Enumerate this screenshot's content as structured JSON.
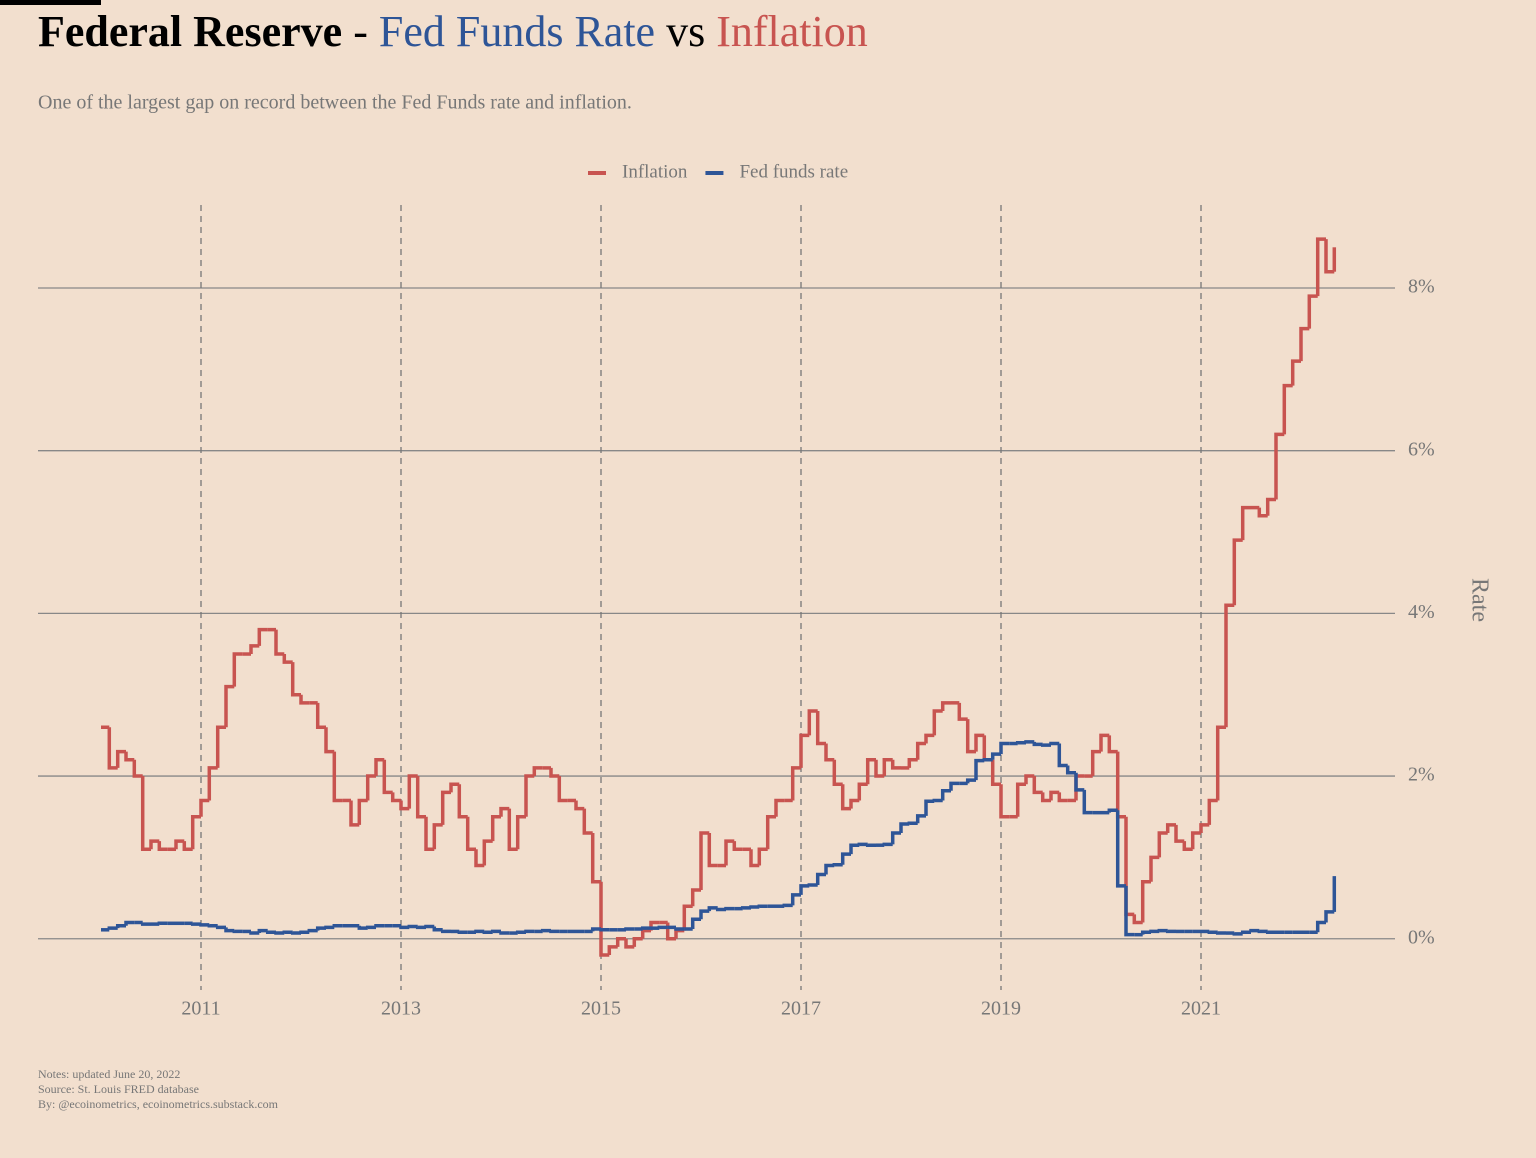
{
  "chart_data": {
    "type": "step",
    "title": {
      "part1": "Federal Reserve",
      "sep": "-",
      "part2": "Fed Funds Rate",
      "part3": "vs",
      "part4": "Inflation"
    },
    "subtitle": "One of the largest gap on record between the Fed Funds rate and inflation.",
    "y_label": "Rate",
    "notes": [
      "Notes: updated June 20, 2022",
      "Source: St. Louis FRED database",
      "By: @ecoinometrics, ecoinometrics.substack.com"
    ],
    "title_colors": {
      "part2": "#2e5597",
      "part4": "#c85450"
    },
    "x": [
      2010,
      2010.083,
      2010.167,
      2010.25,
      2010.333,
      2010.417,
      2010.5,
      2010.583,
      2010.667,
      2010.75,
      2010.833,
      2010.917,
      2011,
      2011.083,
      2011.167,
      2011.25,
      2011.333,
      2011.417,
      2011.5,
      2011.583,
      2011.667,
      2011.75,
      2011.833,
      2011.917,
      2012,
      2012.083,
      2012.167,
      2012.25,
      2012.333,
      2012.417,
      2012.5,
      2012.583,
      2012.667,
      2012.75,
      2012.833,
      2012.917,
      2013,
      2013.083,
      2013.167,
      2013.25,
      2013.333,
      2013.417,
      2013.5,
      2013.583,
      2013.667,
      2013.75,
      2013.833,
      2013.917,
      2014,
      2014.083,
      2014.167,
      2014.25,
      2014.333,
      2014.417,
      2014.5,
      2014.583,
      2014.667,
      2014.75,
      2014.833,
      2014.917,
      2015,
      2015.083,
      2015.167,
      2015.25,
      2015.333,
      2015.417,
      2015.5,
      2015.583,
      2015.667,
      2015.75,
      2015.833,
      2015.917,
      2016,
      2016.083,
      2016.167,
      2016.25,
      2016.333,
      2016.417,
      2016.5,
      2016.583,
      2016.667,
      2016.75,
      2016.833,
      2016.917,
      2017,
      2017.083,
      2017.167,
      2017.25,
      2017.333,
      2017.417,
      2017.5,
      2017.583,
      2017.667,
      2017.75,
      2017.833,
      2017.917,
      2018,
      2018.083,
      2018.167,
      2018.25,
      2018.333,
      2018.417,
      2018.5,
      2018.583,
      2018.667,
      2018.75,
      2018.833,
      2018.917,
      2019,
      2019.083,
      2019.167,
      2019.25,
      2019.333,
      2019.417,
      2019.5,
      2019.583,
      2019.667,
      2019.75,
      2019.833,
      2019.917,
      2020,
      2020.083,
      2020.167,
      2020.25,
      2020.333,
      2020.417,
      2020.5,
      2020.583,
      2020.667,
      2020.75,
      2020.833,
      2020.917,
      2021,
      2021.083,
      2021.167,
      2021.25,
      2021.333,
      2021.417,
      2021.5,
      2021.583,
      2021.667,
      2021.75,
      2021.833,
      2021.917,
      2022,
      2022.083,
      2022.167,
      2022.25,
      2022.333
    ],
    "series": [
      {
        "name": "Inflation",
        "color": "#c85450",
        "values": [
          2.6,
          2.1,
          2.3,
          2.2,
          2.0,
          1.1,
          1.2,
          1.1,
          1.1,
          1.2,
          1.1,
          1.5,
          1.7,
          2.1,
          2.6,
          3.1,
          3.5,
          3.5,
          3.6,
          3.8,
          3.8,
          3.5,
          3.4,
          3.0,
          2.9,
          2.9,
          2.6,
          2.3,
          1.7,
          1.7,
          1.4,
          1.7,
          2.0,
          2.2,
          1.8,
          1.7,
          1.6,
          2.0,
          1.5,
          1.1,
          1.4,
          1.8,
          1.9,
          1.5,
          1.1,
          0.9,
          1.2,
          1.5,
          1.6,
          1.1,
          1.5,
          2.0,
          2.1,
          2.1,
          2.0,
          1.7,
          1.7,
          1.6,
          1.3,
          0.7,
          -0.2,
          -0.1,
          0.0,
          -0.1,
          0.0,
          0.1,
          0.2,
          0.2,
          0.0,
          0.1,
          0.4,
          0.6,
          1.3,
          0.9,
          0.9,
          1.2,
          1.1,
          1.1,
          0.9,
          1.1,
          1.5,
          1.7,
          1.7,
          2.1,
          2.5,
          2.8,
          2.4,
          2.2,
          1.9,
          1.6,
          1.7,
          1.9,
          2.2,
          2.0,
          2.2,
          2.1,
          2.1,
          2.2,
          2.4,
          2.5,
          2.8,
          2.9,
          2.9,
          2.7,
          2.3,
          2.5,
          2.2,
          1.9,
          1.5,
          1.5,
          1.9,
          2.0,
          1.8,
          1.7,
          1.8,
          1.7,
          1.7,
          2.0,
          2.0,
          2.3,
          2.5,
          2.3,
          1.5,
          0.3,
          0.2,
          0.7,
          1.0,
          1.3,
          1.4,
          1.2,
          1.1,
          1.3,
          1.4,
          1.7,
          2.6,
          4.1,
          4.9,
          5.3,
          5.3,
          5.2,
          5.4,
          6.2,
          6.8,
          7.1,
          7.5,
          7.9,
          8.6,
          8.2,
          8.5
        ]
      },
      {
        "name": "Fed funds rate",
        "color": "#2e5597",
        "values": [
          0.11,
          0.13,
          0.16,
          0.2,
          0.2,
          0.18,
          0.18,
          0.19,
          0.19,
          0.19,
          0.19,
          0.18,
          0.17,
          0.16,
          0.14,
          0.1,
          0.09,
          0.09,
          0.07,
          0.1,
          0.08,
          0.07,
          0.08,
          0.07,
          0.08,
          0.1,
          0.13,
          0.14,
          0.16,
          0.16,
          0.16,
          0.13,
          0.14,
          0.16,
          0.16,
          0.16,
          0.14,
          0.15,
          0.14,
          0.15,
          0.11,
          0.09,
          0.09,
          0.08,
          0.08,
          0.09,
          0.08,
          0.09,
          0.07,
          0.07,
          0.08,
          0.09,
          0.09,
          0.1,
          0.09,
          0.09,
          0.09,
          0.09,
          0.09,
          0.12,
          0.11,
          0.11,
          0.11,
          0.12,
          0.12,
          0.13,
          0.13,
          0.14,
          0.14,
          0.12,
          0.12,
          0.24,
          0.34,
          0.38,
          0.36,
          0.37,
          0.37,
          0.38,
          0.39,
          0.4,
          0.4,
          0.4,
          0.41,
          0.54,
          0.65,
          0.66,
          0.79,
          0.9,
          0.91,
          1.04,
          1.15,
          1.16,
          1.15,
          1.15,
          1.16,
          1.3,
          1.41,
          1.42,
          1.51,
          1.69,
          1.7,
          1.82,
          1.91,
          1.91,
          1.95,
          2.19,
          2.2,
          2.27,
          2.4,
          2.4,
          2.41,
          2.42,
          2.39,
          2.38,
          2.4,
          2.13,
          2.04,
          1.83,
          1.55,
          1.55,
          1.55,
          1.58,
          0.65,
          0.05,
          0.05,
          0.08,
          0.09,
          0.1,
          0.09,
          0.09,
          0.09,
          0.09,
          0.09,
          0.08,
          0.07,
          0.07,
          0.06,
          0.08,
          0.1,
          0.09,
          0.08,
          0.08,
          0.08,
          0.08,
          0.08,
          0.08,
          0.2,
          0.33,
          0.77
        ]
      }
    ],
    "xlim": [
      2009.37,
      2022.94
    ],
    "xticks": [
      2011,
      2013,
      2015,
      2017,
      2019,
      2021
    ],
    "ylim": [
      -0.63,
      9.02
    ],
    "yticks": [
      {
        "value": 0,
        "label": "0%"
      },
      {
        "value": 2,
        "label": "2%"
      },
      {
        "value": 4,
        "label": "4%"
      },
      {
        "value": 6,
        "label": "6%"
      },
      {
        "value": 8,
        "label": "8%"
      }
    ],
    "grid": true,
    "legend": "top"
  }
}
